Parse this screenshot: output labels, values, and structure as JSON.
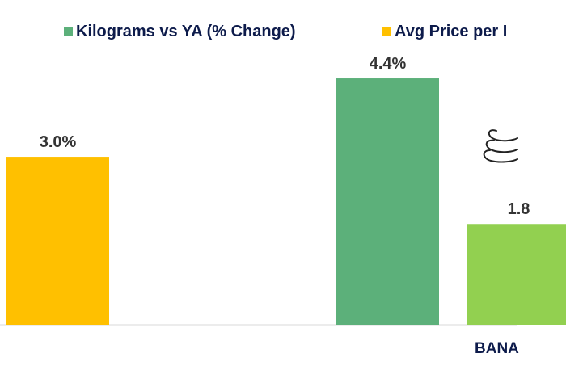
{
  "chart_data": {
    "type": "bar",
    "legend_position": "top",
    "grid": false,
    "ylim": [
      0,
      5.8
    ],
    "categories": [
      "",
      "BANA"
    ],
    "series": [
      {
        "name": "Kilograms vs YA (% Change)",
        "values": [
          null,
          4.4
        ],
        "labels": [
          "",
          "4.4%"
        ],
        "color": "#5cb07a"
      },
      {
        "name": "",
        "values": [
          null,
          1.8
        ],
        "labels": [
          "",
          "1.8"
        ],
        "color": "#92d050"
      },
      {
        "name": "Avg Price per I",
        "values": [
          3.0,
          null
        ],
        "labels": [
          "3.0%",
          ""
        ],
        "color": "#ffc000"
      }
    ],
    "icons": [
      "banana-icon"
    ]
  }
}
